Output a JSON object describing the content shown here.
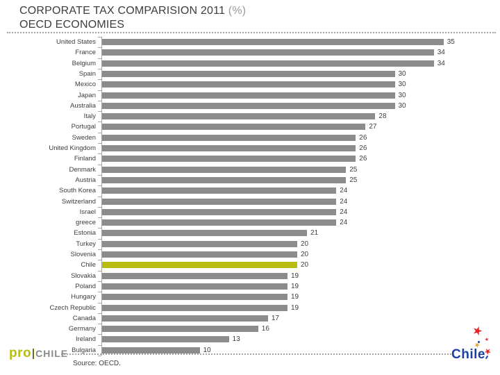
{
  "slide": {
    "title_main": "CORPORATE TAX COMPARISION 2011 ",
    "title_suffix": "(%)",
    "subtitle": "OECD ECONOMIES",
    "source": "Source: OECD."
  },
  "logos": {
    "prochile_pro": "pro",
    "prochile_chile": "CHILE",
    "chile_brand": "Chile"
  },
  "chart_data": {
    "type": "bar",
    "orientation": "horizontal",
    "title": "CORPORATE TAX COMPARISION 2011 (%) - OECD ECONOMIES",
    "xlabel": "",
    "ylabel": "",
    "xlim": [
      0,
      40
    ],
    "grid": false,
    "legend": false,
    "value_labels": true,
    "categories": [
      "United States",
      "France",
      "Belgium",
      "Spain",
      "Mexico",
      "Japan",
      "Australia",
      "Italy",
      "Portugal",
      "Sweden",
      "United Kingdom",
      "Finland",
      "Denmark",
      "Austria",
      "South Korea",
      "Switzerland",
      "Israel",
      "greece",
      "Estonia",
      "Turkey",
      "Slovenia",
      "Chile",
      "Slovakia",
      "Poland",
      "Hungary",
      "Czech Republic",
      "Canada",
      "Germany",
      "Ireland",
      "Bulgaria"
    ],
    "values": [
      35,
      34,
      34,
      30,
      30,
      30,
      30,
      28,
      27,
      26,
      26,
      26,
      25,
      25,
      24,
      24,
      24,
      24,
      21,
      20,
      20,
      20,
      19,
      19,
      19,
      19,
      17,
      16,
      13,
      10
    ],
    "highlight_category": "Chile",
    "bar_color": "#8c8c8c",
    "highlight_color": "#b8bc10",
    "axis_color": "#a6a6a6",
    "label_color": "#3d3d3d"
  }
}
